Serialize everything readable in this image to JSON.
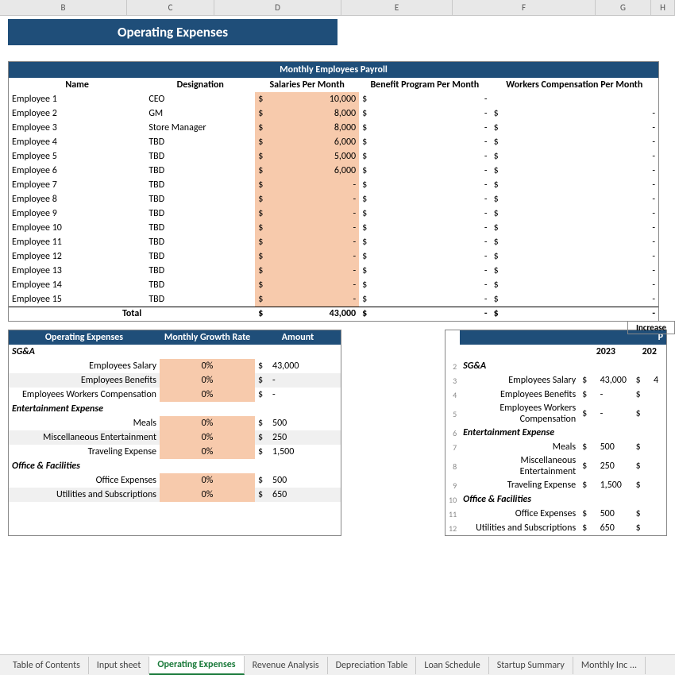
{
  "columns": [
    "B",
    "C",
    "D",
    "E",
    "F",
    "G",
    "H"
  ],
  "title": "Operating Expenses",
  "payroll": {
    "header": "Monthly Employees Payroll",
    "cols": [
      "Name",
      "Designation",
      "Salaries Per Month",
      "Benefit Program Per Month",
      "Workers Compensation Per Month"
    ],
    "rows": [
      {
        "name": "Employee 1",
        "desig": "CEO",
        "salary": "10,000",
        "benefit": "-",
        "wc": ""
      },
      {
        "name": "Employee 2",
        "desig": "GM",
        "salary": "8,000",
        "benefit": "-",
        "wc": "-"
      },
      {
        "name": "Employee 3",
        "desig": "Store Manager",
        "salary": "8,000",
        "benefit": "-",
        "wc": "-"
      },
      {
        "name": "Employee 4",
        "desig": "TBD",
        "salary": "6,000",
        "benefit": "-",
        "wc": "-"
      },
      {
        "name": "Employee 5",
        "desig": "TBD",
        "salary": "5,000",
        "benefit": "-",
        "wc": "-"
      },
      {
        "name": "Employee 6",
        "desig": "TBD",
        "salary": "6,000",
        "benefit": "-",
        "wc": "-"
      },
      {
        "name": "Employee 7",
        "desig": "TBD",
        "salary": "-",
        "benefit": "-",
        "wc": "-"
      },
      {
        "name": "Employee 8",
        "desig": "TBD",
        "salary": "-",
        "benefit": "-",
        "wc": "-"
      },
      {
        "name": "Employee 9",
        "desig": "TBD",
        "salary": "-",
        "benefit": "-",
        "wc": "-"
      },
      {
        "name": "Employee 10",
        "desig": "TBD",
        "salary": "-",
        "benefit": "-",
        "wc": "-"
      },
      {
        "name": "Employee 11",
        "desig": "TBD",
        "salary": "-",
        "benefit": "-",
        "wc": "-"
      },
      {
        "name": "Employee 12",
        "desig": "TBD",
        "salary": "-",
        "benefit": "-",
        "wc": "-"
      },
      {
        "name": "Employee 13",
        "desig": "TBD",
        "salary": "-",
        "benefit": "-",
        "wc": "-"
      },
      {
        "name": "Employee 14",
        "desig": "TBD",
        "salary": "-",
        "benefit": "-",
        "wc": "-"
      },
      {
        "name": "Employee 15",
        "desig": "TBD",
        "salary": "-",
        "benefit": "-",
        "wc": "-"
      }
    ],
    "total_label": "Total",
    "total_salary": "43,000",
    "total_benefit": "-",
    "total_wc": "-"
  },
  "opex": {
    "headers": [
      "Operating Expenses",
      "Monthly Growth Rate",
      "Amount"
    ],
    "groups": [
      {
        "label": "SG&A",
        "rows": [
          {
            "name": "Employees Salary",
            "rate": "0%",
            "amt": "43,000",
            "gray": false
          },
          {
            "name": "Employees Benefits",
            "rate": "0%",
            "amt": "-",
            "gray": true
          },
          {
            "name": "Employees Workers Compensation",
            "rate": "0%",
            "amt": "-",
            "gray": false
          }
        ]
      },
      {
        "label": "Entertainment Expense",
        "rows": [
          {
            "name": "Meals",
            "rate": "0%",
            "amt": "500",
            "gray": false
          },
          {
            "name": "Miscellaneous Entertainment",
            "rate": "0%",
            "amt": "250",
            "gray": true
          },
          {
            "name": "Traveling Expense",
            "rate": "0%",
            "amt": "1,500",
            "gray": false
          }
        ]
      },
      {
        "label": "Office & Facilities",
        "rows": [
          {
            "name": "Office Expenses",
            "rate": "0%",
            "amt": "500",
            "gray": false
          },
          {
            "name": "Utilities and Subscriptions",
            "rate": "0%",
            "amt": "650",
            "gray": true
          }
        ]
      }
    ]
  },
  "increase_label": "Increase",
  "proj": {
    "p_label": "P",
    "year1": "2023",
    "year2": "202",
    "groups": [
      {
        "n": "2",
        "label": "SG&A",
        "rows": [
          {
            "n": "3",
            "name": "Employees Salary",
            "a": "43,000",
            "b": "4"
          },
          {
            "n": "4",
            "name": "Employees Benefits",
            "a": "-",
            "b": ""
          },
          {
            "n": "5",
            "name": "Employees Workers Compensation",
            "a": "-",
            "b": ""
          }
        ]
      },
      {
        "n": "6",
        "label": "Entertainment Expense",
        "rows": [
          {
            "n": "7",
            "name": "Meals",
            "a": "500",
            "b": ""
          },
          {
            "n": "8",
            "name": "Miscellaneous Entertainment",
            "a": "250",
            "b": ""
          },
          {
            "n": "9",
            "name": "Traveling Expense",
            "a": "1,500",
            "b": ""
          }
        ]
      },
      {
        "n": "10",
        "label": "Office & Facilities",
        "rows": [
          {
            "n": "11",
            "name": "Office Expenses",
            "a": "500",
            "b": ""
          },
          {
            "n": "12",
            "name": "Utilities and Subscriptions",
            "a": "650",
            "b": ""
          }
        ]
      }
    ]
  },
  "tabs": [
    "Table of Contents",
    "Input sheet",
    "Operating Expenses",
    "Revenue Analysis",
    "Depreciation Table",
    "Loan Schedule",
    "Startup Summary",
    "Monthly Inc ..."
  ],
  "active_tab": 2
}
